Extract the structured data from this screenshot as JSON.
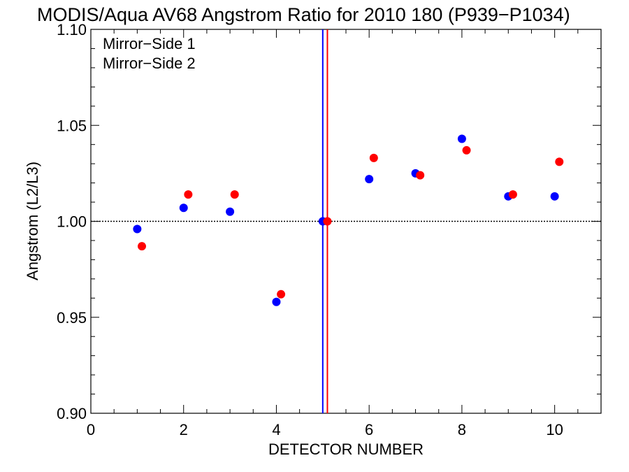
{
  "chart_data": {
    "type": "scatter",
    "title": "MODIS/Aqua AV68 Angstrom Ratio for 2010 180 (P939−P1034)",
    "xlabel": "DETECTOR NUMBER",
    "ylabel": "Angstrom (L2/L3)",
    "xlim": [
      0,
      11
    ],
    "ylim": [
      0.9,
      1.1
    ],
    "x_ticks": [
      "0",
      "2",
      "4",
      "6",
      "8",
      "10"
    ],
    "x_tick_values": [
      0,
      2,
      4,
      6,
      8,
      10
    ],
    "y_ticks": [
      "0.90",
      "0.95",
      "1.00",
      "1.05",
      "1.10"
    ],
    "y_tick_values": [
      0.9,
      0.95,
      1.0,
      1.05,
      1.1
    ],
    "reference_line_y": 1.0,
    "legend_position": "top-left",
    "series": [
      {
        "name": "Mirror−Side 1",
        "color": "#0000ff",
        "x": [
          1,
          2,
          3,
          4,
          5,
          6,
          7,
          8,
          9,
          10
        ],
        "y": [
          0.996,
          1.007,
          1.005,
          0.958,
          1.0,
          1.022,
          1.025,
          1.043,
          1.013,
          1.013
        ],
        "marker_line_x": 5.0
      },
      {
        "name": "Mirror−Side 2",
        "color": "#ff0000",
        "x": [
          1.1,
          2.1,
          3.1,
          4.1,
          5.1,
          6.1,
          7.1,
          8.1,
          9.1,
          10.1
        ],
        "y": [
          0.987,
          1.014,
          1.014,
          0.962,
          1.0,
          1.033,
          1.024,
          1.037,
          1.014,
          1.031
        ],
        "marker_line_x": 5.1
      }
    ]
  }
}
